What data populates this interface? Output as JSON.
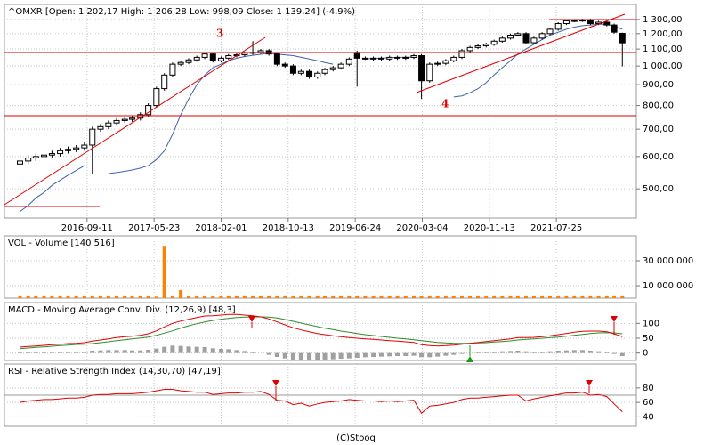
{
  "chart_data": {
    "type": "candlestick",
    "title": "^OMXR [Open: 1 202,17  High: 1 206,28  Low: 998,09  Close: 1 139,24] (-4,9%)",
    "footer": "(C)Stooq",
    "annotations": [
      {
        "text": "3"
      },
      {
        "text": "4"
      }
    ],
    "log": true,
    "grid": true,
    "xlim": [
      "2015-11-03",
      "2022-05-24"
    ],
    "xticks": [
      "2016-09-11",
      "2017-05-23",
      "2018-02-01",
      "2018-10-13",
      "2019-06-24",
      "2020-03-04",
      "2020-11-13",
      "2021-07-25"
    ],
    "ylim": [
      424,
      1415
    ],
    "yticks": [
      {
        "value": 1300,
        "label": "1 300,00"
      },
      {
        "value": 1200,
        "label": "1 200,00"
      },
      {
        "value": 1100,
        "label": "1 100,00"
      },
      {
        "value": 1000,
        "label": "1 000,00"
      },
      {
        "value": 900,
        "label": "900,00"
      },
      {
        "value": 800,
        "label": "800,00"
      },
      {
        "value": 700,
        "label": "700,00"
      },
      {
        "value": 600,
        "label": "600,00"
      },
      {
        "value": 500,
        "label": "500,00"
      }
    ],
    "x": [
      "2016-01-01",
      "2016-02-01",
      "2016-03-01",
      "2016-04-01",
      "2016-05-01",
      "2016-06-01",
      "2016-07-01",
      "2016-08-01",
      "2016-09-01",
      "2016-10-01",
      "2016-11-01",
      "2016-12-01",
      "2017-01-01",
      "2017-02-01",
      "2017-03-01",
      "2017-04-01",
      "2017-05-01",
      "2017-06-01",
      "2017-07-01",
      "2017-08-01",
      "2017-09-01",
      "2017-10-01",
      "2017-11-01",
      "2017-12-01",
      "2018-01-01",
      "2018-02-01",
      "2018-03-01",
      "2018-04-01",
      "2018-05-01",
      "2018-06-01",
      "2018-07-01",
      "2018-08-01",
      "2018-09-01",
      "2018-10-01",
      "2018-11-01",
      "2018-12-01",
      "2019-01-01",
      "2019-02-01",
      "2019-03-01",
      "2019-04-01",
      "2019-05-01",
      "2019-06-01",
      "2019-07-01",
      "2019-08-01",
      "2019-09-01",
      "2019-10-01",
      "2019-11-01",
      "2019-12-01",
      "2020-01-01",
      "2020-02-01",
      "2020-03-01",
      "2020-04-01",
      "2020-05-01",
      "2020-06-01",
      "2020-07-01",
      "2020-08-01",
      "2020-09-01",
      "2020-10-01",
      "2020-11-01",
      "2020-12-01",
      "2021-01-01",
      "2021-02-01",
      "2021-03-01",
      "2021-04-01",
      "2021-05-01",
      "2021-06-01",
      "2021-07-01",
      "2021-08-01",
      "2021-09-01",
      "2021-10-01",
      "2021-11-01",
      "2021-12-01",
      "2022-01-01",
      "2022-02-01",
      "2022-03-01",
      "2022-04-01"
    ],
    "open": [
      575,
      585,
      595,
      600,
      605,
      610,
      620,
      625,
      630,
      640,
      700,
      710,
      725,
      735,
      740,
      745,
      760,
      800,
      880,
      950,
      1010,
      1020,
      1035,
      1050,
      1070,
      1030,
      1045,
      1060,
      1065,
      1075,
      1080,
      1090,
      1070,
      1010,
      1000,
      960,
      970,
      940,
      960,
      980,
      990,
      1010,
      1080,
      1045,
      1040,
      1045,
      1040,
      1050,
      1045,
      1050,
      1060,
      920,
      1010,
      1015,
      1030,
      1050,
      1090,
      1110,
      1120,
      1130,
      1150,
      1170,
      1190,
      1200,
      1140,
      1170,
      1200,
      1230,
      1270,
      1290,
      1292,
      1295,
      1270,
      1280,
      1260,
      1202.17
    ],
    "high": [
      595,
      605,
      610,
      615,
      620,
      630,
      635,
      640,
      650,
      710,
      720,
      735,
      745,
      750,
      755,
      770,
      810,
      890,
      960,
      1020,
      1030,
      1045,
      1060,
      1080,
      1080,
      1055,
      1070,
      1075,
      1085,
      1150,
      1100,
      1100,
      1080,
      1020,
      1010,
      980,
      980,
      970,
      990,
      1000,
      1020,
      1050,
      1090,
      1055,
      1055,
      1055,
      1060,
      1060,
      1060,
      1070,
      1070,
      1020,
      1025,
      1040,
      1060,
      1100,
      1120,
      1130,
      1140,
      1160,
      1180,
      1200,
      1210,
      1210,
      1180,
      1210,
      1240,
      1280,
      1300,
      1302,
      1305,
      1305,
      1290,
      1290,
      1270,
      1206.28
    ],
    "low": [
      565,
      575,
      585,
      590,
      595,
      600,
      610,
      615,
      620,
      545,
      690,
      700,
      715,
      725,
      730,
      735,
      750,
      790,
      870,
      940,
      1000,
      1010,
      1025,
      1040,
      1020,
      1020,
      1035,
      1050,
      1055,
      1065,
      1070,
      1060,
      1000,
      990,
      950,
      950,
      930,
      930,
      950,
      970,
      980,
      1000,
      890,
      1035,
      1030,
      1030,
      1030,
      1035,
      1035,
      1040,
      830,
      910,
      1000,
      1005,
      1020,
      1040,
      1080,
      1100,
      1110,
      1120,
      1140,
      1160,
      1180,
      1130,
      1130,
      1160,
      1190,
      1220,
      1260,
      1280,
      1282,
      1260,
      1260,
      1250,
      1200,
      998.09
    ],
    "close": [
      585,
      595,
      600,
      605,
      610,
      620,
      625,
      630,
      640,
      700,
      710,
      725,
      735,
      740,
      745,
      760,
      800,
      880,
      950,
      1010,
      1020,
      1035,
      1050,
      1070,
      1030,
      1045,
      1060,
      1065,
      1075,
      1080,
      1090,
      1070,
      1010,
      1000,
      960,
      970,
      940,
      960,
      980,
      990,
      1010,
      1040,
      1045,
      1040,
      1045,
      1040,
      1050,
      1045,
      1050,
      1060,
      920,
      1010,
      1015,
      1030,
      1050,
      1090,
      1110,
      1120,
      1130,
      1150,
      1170,
      1190,
      1200,
      1140,
      1170,
      1200,
      1230,
      1270,
      1290,
      1292,
      1295,
      1270,
      1280,
      1260,
      1210,
      1139.24
    ],
    "series": [
      {
        "color": "#3f63a8",
        "values": [
          440,
          455,
          475,
          490,
          510,
          525,
          540,
          555,
          570,
          null,
          null,
          545,
          548,
          552,
          556,
          562,
          570,
          590,
          620,
          680,
          760,
          830,
          900,
          950,
          990,
          1010,
          1030,
          1045,
          1055,
          1062,
          1068,
          1075,
          1070,
          1065,
          1060,
          1050,
          1040,
          1030,
          1020,
          1010,
          null,
          null,
          null,
          1040,
          1045,
          1045,
          1048,
          1050,
          1050,
          1052,
          null,
          null,
          null,
          null,
          840,
          845,
          860,
          880,
          910,
          950,
          990,
          1030,
          1070,
          1100,
          1130,
          1160,
          1190,
          1210,
          1230,
          1245,
          1255,
          1260,
          1265,
          1265,
          1250,
          1230
        ]
      }
    ],
    "panels": [
      {
        "type": "bar",
        "title": "VOL - Volume [140 516]",
        "color": "#ff7f00",
        "ylim": [
          0,
          50000000
        ],
        "yticks": [
          {
            "value": 10000000,
            "label": "10 000 000"
          },
          {
            "value": 30000000,
            "label": "30 000 000"
          }
        ],
        "values": [
          1500000,
          1500000,
          1500000,
          1500000,
          1500000,
          1500000,
          1500000,
          1500000,
          1500000,
          1500000,
          1500000,
          1500000,
          1500000,
          1500000,
          1500000,
          1500000,
          1500000,
          1200000,
          42000000,
          1500000,
          6500000,
          1500000,
          1500000,
          1500000,
          1500000,
          1500000,
          1500000,
          1500000,
          1500000,
          1500000,
          1500000,
          1500000,
          1500000,
          1500000,
          1500000,
          1500000,
          1500000,
          1500000,
          1500000,
          1500000,
          1500000,
          1500000,
          1500000,
          1500000,
          1500000,
          1500000,
          1500000,
          1500000,
          1500000,
          1500000,
          1500000,
          1500000,
          1500000,
          1500000,
          1500000,
          1500000,
          1500000,
          1500000,
          1500000,
          1500000,
          1500000,
          1500000,
          1500000,
          1500000,
          1500000,
          1500000,
          1500000,
          1500000,
          1500000,
          1500000,
          1500000,
          1500000,
          1500000,
          1500000,
          1500000,
          1500000
        ]
      },
      {
        "type": "line",
        "title": "MACD - Moving Average Conv. Div. (12,26,9) [48,3]",
        "ylim": [
          -25,
          170
        ],
        "yticks": [
          0,
          50,
          100
        ],
        "histogram": {
          "color": "#a0a0a0",
          "values": [
            5,
            5,
            5,
            5,
            5,
            5,
            5,
            4,
            5,
            8,
            9,
            10,
            10,
            10,
            9,
            9,
            11,
            15,
            21,
            25,
            24,
            22,
            21,
            20,
            16,
            14,
            13,
            10,
            7,
            4,
            0,
            -6,
            -13,
            -18,
            -22,
            -23,
            -23,
            -23,
            -22,
            -21,
            -19,
            -18,
            -16,
            -14,
            -13,
            -12,
            -11,
            -10,
            -10,
            -9,
            -14,
            -14,
            -12,
            -9,
            -6,
            -3,
            0,
            2,
            4,
            5,
            6,
            7,
            8,
            6,
            5,
            5,
            6,
            8,
            9,
            10,
            10,
            8,
            6,
            3,
            -3,
            -10
          ]
        },
        "series": [
          {
            "color": "#2e8b2e",
            "values": [
              15,
              17,
              19,
              21,
              23,
              25,
              27,
              29,
              30,
              32,
              35,
              38,
              42,
              45,
              48,
              51,
              54,
              60,
              67,
              75,
              84,
              92,
              99,
              105,
              110,
              114,
              117,
              120,
              121,
              122,
              122,
              121,
              118,
              113,
              107,
              101,
              95,
              89,
              84,
              79,
              74,
              70,
              66,
              62,
              59,
              56,
              53,
              50,
              48,
              45,
              42,
              39,
              36,
              34,
              33,
              33,
              33,
              34,
              35,
              37,
              39,
              41,
              44,
              46,
              48,
              50,
              52,
              54,
              57,
              60,
              63,
              66,
              68,
              69,
              68,
              65
            ]
          },
          {
            "color": "#e00000",
            "values": [
              20,
              22,
              24,
              26,
              28,
              30,
              32,
              33,
              35,
              40,
              44,
              48,
              52,
              55,
              57,
              60,
              65,
              75,
              88,
              100,
              108,
              114,
              120,
              125,
              126,
              128,
              130,
              130,
              128,
              126,
              122,
              115,
              105,
              95,
              85,
              78,
              72,
              66,
              62,
              58,
              55,
              52,
              50,
              48,
              46,
              44,
              42,
              40,
              38,
              36,
              28,
              25,
              24,
              25,
              27,
              30,
              33,
              36,
              39,
              42,
              45,
              48,
              52,
              52,
              53,
              55,
              58,
              62,
              66,
              70,
              73,
              74,
              74,
              72,
              65,
              55
            ]
          }
        ]
      },
      {
        "type": "line",
        "title": "RSI - Relative Strength Index (14,30,70) [47,19]",
        "ylim": [
          27,
          113
        ],
        "yticks": [
          40,
          60,
          80
        ],
        "reference_lines": [
          70
        ],
        "series": [
          {
            "color": "#e00000",
            "values": [
              60,
              62,
              63,
              64,
              64,
              65,
              66,
              66,
              67,
              70,
              71,
              71,
              72,
              72,
              72,
              73,
              74,
              76,
              78,
              78,
              76,
              75,
              74,
              74,
              71,
              72,
              73,
              73,
              74,
              74,
              75,
              71,
              63,
              62,
              57,
              59,
              55,
              58,
              60,
              61,
              62,
              64,
              63,
              62,
              62,
              61,
              62,
              61,
              62,
              63,
              45,
              55,
              56,
              58,
              60,
              64,
              66,
              66,
              67,
              68,
              69,
              70,
              70,
              62,
              65,
              67,
              69,
              71,
              73,
              73,
              74,
              70,
              71,
              68,
              58,
              47
            ]
          }
        ]
      }
    ]
  }
}
